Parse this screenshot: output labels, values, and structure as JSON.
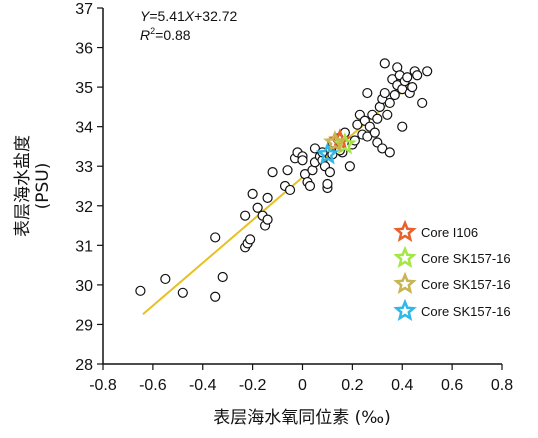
{
  "chart_data": {
    "type": "scatter",
    "xlabel": "表层海水氧同位素 (‰)",
    "ylabel_line1": "表层海水盐度",
    "ylabel_line2": "(PSU)",
    "xlim": [
      -0.8,
      0.8
    ],
    "ylim": [
      28,
      37
    ],
    "xticks": [
      "-0.8",
      "-0.6",
      "-0.4",
      "-0.2",
      "0",
      "0.2",
      "0.4",
      "0.6",
      "0.8"
    ],
    "yticks": [
      "28",
      "29",
      "30",
      "31",
      "32",
      "33",
      "34",
      "35",
      "36",
      "37"
    ],
    "grid": false,
    "regression": {
      "equation_y": "Y",
      "equation_rest": "=5.41",
      "equation_x": "X",
      "equation_tail": "+32.72",
      "r2_label": "R",
      "r2_sup": "2",
      "r2_value": "=0.88",
      "slope": 5.41,
      "intercept": 32.72,
      "x_range": [
        -0.64,
        0.44
      ],
      "color": "#e8c020"
    },
    "points": [
      [
        -0.65,
        29.85
      ],
      [
        -0.55,
        30.15
      ],
      [
        -0.48,
        29.8
      ],
      [
        -0.35,
        29.7
      ],
      [
        -0.32,
        30.2
      ],
      [
        -0.35,
        31.2
      ],
      [
        -0.23,
        30.95
      ],
      [
        -0.22,
        31.05
      ],
      [
        -0.21,
        31.15
      ],
      [
        -0.23,
        31.75
      ],
      [
        -0.18,
        31.95
      ],
      [
        -0.16,
        31.75
      ],
      [
        -0.15,
        31.5
      ],
      [
        -0.14,
        31.65
      ],
      [
        -0.14,
        32.2
      ],
      [
        -0.2,
        32.3
      ],
      [
        -0.12,
        32.85
      ],
      [
        -0.07,
        32.5
      ],
      [
        -0.05,
        32.4
      ],
      [
        -0.06,
        32.9
      ],
      [
        -0.03,
        33.2
      ],
      [
        -0.02,
        33.35
      ],
      [
        0.0,
        33.25
      ],
      [
        0.0,
        33.15
      ],
      [
        0.01,
        32.8
      ],
      [
        0.02,
        32.6
      ],
      [
        0.03,
        32.5
      ],
      [
        0.04,
        32.9
      ],
      [
        0.05,
        33.1
      ],
      [
        0.05,
        33.45
      ],
      [
        0.07,
        33.25
      ],
      [
        0.08,
        33.15
      ],
      [
        0.09,
        33.0
      ],
      [
        0.1,
        32.45
      ],
      [
        0.1,
        32.55
      ],
      [
        0.11,
        32.85
      ],
      [
        0.12,
        33.3
      ],
      [
        0.12,
        33.6
      ],
      [
        0.14,
        33.7
      ],
      [
        0.16,
        33.35
      ],
      [
        0.17,
        33.85
      ],
      [
        0.19,
        33.0
      ],
      [
        0.2,
        33.55
      ],
      [
        0.21,
        33.65
      ],
      [
        0.22,
        34.05
      ],
      [
        0.23,
        34.3
      ],
      [
        0.24,
        33.8
      ],
      [
        0.25,
        34.15
      ],
      [
        0.26,
        33.75
      ],
      [
        0.27,
        34.0
      ],
      [
        0.28,
        34.3
      ],
      [
        0.29,
        33.85
      ],
      [
        0.3,
        34.2
      ],
      [
        0.3,
        33.6
      ],
      [
        0.31,
        34.5
      ],
      [
        0.32,
        33.45
      ],
      [
        0.32,
        34.7
      ],
      [
        0.33,
        34.85
      ],
      [
        0.33,
        35.6
      ],
      [
        0.34,
        34.3
      ],
      [
        0.35,
        33.35
      ],
      [
        0.35,
        34.6
      ],
      [
        0.36,
        35.2
      ],
      [
        0.37,
        34.8
      ],
      [
        0.38,
        35.5
      ],
      [
        0.38,
        35.05
      ],
      [
        0.39,
        35.3
      ],
      [
        0.4,
        34.0
      ],
      [
        0.4,
        34.95
      ],
      [
        0.41,
        35.15
      ],
      [
        0.42,
        35.25
      ],
      [
        0.43,
        34.85
      ],
      [
        0.44,
        35.0
      ],
      [
        0.45,
        35.4
      ],
      [
        0.46,
        35.3
      ],
      [
        0.48,
        34.6
      ],
      [
        0.5,
        35.4
      ],
      [
        0.26,
        34.85
      ],
      [
        0.15,
        33.4
      ],
      [
        0.08,
        33.35
      ]
    ],
    "cores": [
      {
        "name": "Core I106",
        "x": 0.15,
        "y": 33.65,
        "color": "#e8602a"
      },
      {
        "name": "Core SK157-16",
        "x": 0.17,
        "y": 33.55,
        "color": "#a4e645"
      },
      {
        "name": "Core SK157-16",
        "x": 0.13,
        "y": 33.6,
        "color": "#c8b450"
      },
      {
        "name": "Core SK157-16",
        "x": 0.1,
        "y": 33.3,
        "color": "#2fb8e8"
      }
    ]
  }
}
